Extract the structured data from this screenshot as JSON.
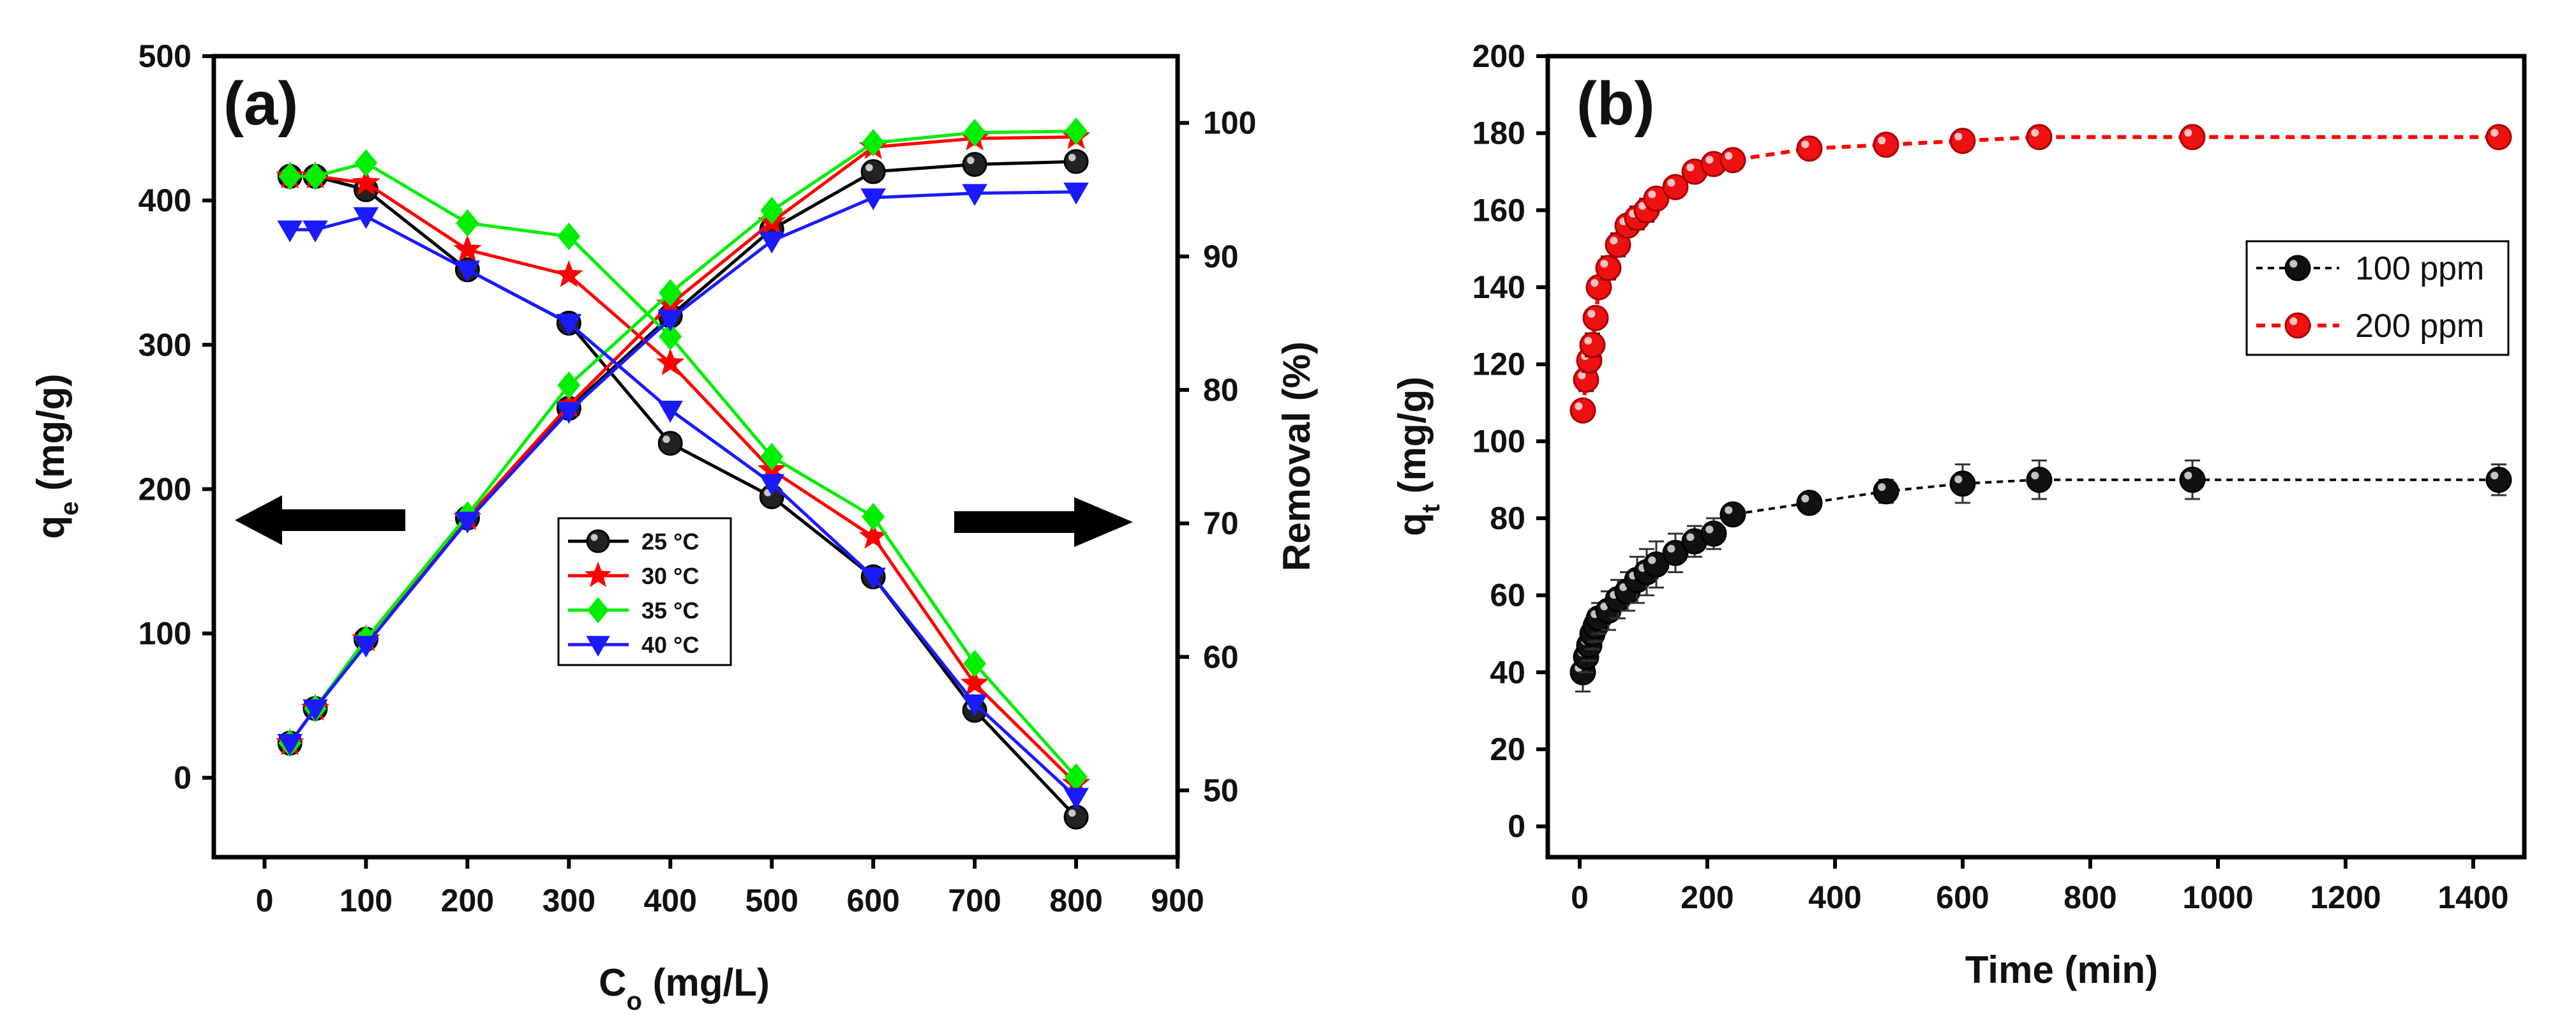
{
  "chart_data": [
    {
      "panel_label": "(a)",
      "type": "line",
      "xlabel_main": "C",
      "xlabel_sub": "o",
      "xlabel_rest": " (mg/L)",
      "ylabel_main": "q",
      "ylabel_sub": "e",
      "ylabel_rest": " (mg/g)",
      "y2label": "Removal (%)",
      "xlim": [
        -50,
        900
      ],
      "ylim": [
        -55,
        500
      ],
      "y2lim": [
        45,
        105
      ],
      "xticks": [
        0,
        100,
        200,
        300,
        400,
        500,
        600,
        700,
        800,
        900
      ],
      "yticks": [
        0,
        100,
        200,
        300,
        400,
        500
      ],
      "y2ticks": [
        50,
        60,
        70,
        80,
        90,
        100
      ],
      "x": [
        25,
        50,
        100,
        200,
        300,
        400,
        500,
        600,
        700,
        800
      ],
      "series": [
        {
          "name": "25 °C",
          "color": "#000000",
          "marker": "circle",
          "qe": [
            24,
            48,
            96,
            180,
            256,
            320,
            380,
            420,
            425,
            427
          ],
          "removal": [
            96,
            96,
            95,
            89,
            85,
            76,
            72,
            66,
            56,
            48
          ]
        },
        {
          "name": "30 °C",
          "color": "#ff0000",
          "marker": "star",
          "qe": [
            24,
            48,
            96,
            180,
            258,
            328,
            385,
            437,
            443,
            444
          ],
          "removal": [
            96,
            96,
            95.5,
            90.5,
            88.6,
            82,
            74,
            69,
            58,
            50.5
          ]
        },
        {
          "name": "35 °C",
          "color": "#00ee00",
          "marker": "diamond",
          "qe": [
            24,
            48,
            96,
            182,
            272,
            336,
            393,
            440,
            447,
            448
          ],
          "removal": [
            96,
            96,
            97,
            92.5,
            91.5,
            84,
            75,
            70.5,
            59.5,
            51
          ]
        },
        {
          "name": "40 °C",
          "color": "#1a1aff",
          "marker": "triangle-down",
          "qe": [
            24,
            48,
            92,
            178,
            254,
            318,
            372,
            402,
            405,
            406
          ],
          "removal": [
            92,
            92,
            93,
            89,
            85,
            78.5,
            73,
            66,
            56.5,
            49.5
          ]
        }
      ],
      "annotations": [
        "left-arrow: q_e axis",
        "right-arrow: Removal axis"
      ]
    },
    {
      "panel_label": "(b)",
      "type": "line",
      "xlabel": "Time (min)",
      "ylabel_main": "q",
      "ylabel_sub": "t",
      "ylabel_rest": " (mg/g)",
      "xlim": [
        -50,
        1480
      ],
      "ylim": [
        -8,
        200
      ],
      "xticks": [
        0,
        200,
        400,
        600,
        800,
        1000,
        1200,
        1400
      ],
      "yticks": [
        0,
        20,
        40,
        60,
        80,
        100,
        120,
        140,
        160,
        180,
        200
      ],
      "series": [
        {
          "name": "100 ppm",
          "color": "#000000",
          "fill": "#111111",
          "marker": "circle",
          "x": [
            5,
            10,
            15,
            20,
            25,
            30,
            45,
            60,
            75,
            90,
            105,
            120,
            150,
            180,
            210,
            240,
            360,
            480,
            600,
            720,
            960,
            1440
          ],
          "y": [
            40,
            44,
            47,
            50,
            52,
            54,
            56,
            59,
            61,
            64,
            66,
            68,
            71,
            74,
            76,
            81,
            84,
            87,
            89,
            90,
            90,
            90
          ],
          "err": [
            5,
            4,
            4,
            4,
            4,
            4,
            5,
            5,
            5,
            6,
            6,
            6,
            5,
            4,
            4,
            2,
            2,
            3,
            5,
            5,
            5,
            4
          ]
        },
        {
          "name": "200 ppm",
          "color": "#ff0000",
          "fill": "#ee1111",
          "marker": "circle",
          "x": [
            5,
            10,
            15,
            20,
            25,
            30,
            45,
            60,
            75,
            90,
            105,
            120,
            150,
            180,
            210,
            240,
            360,
            480,
            600,
            720,
            960,
            1440
          ],
          "y": [
            108,
            116,
            121,
            125,
            132,
            140,
            145,
            151,
            156,
            158,
            160,
            163,
            166,
            170,
            172,
            173,
            176,
            177,
            178,
            179,
            179,
            179
          ],
          "err": [
            2,
            3,
            3,
            3,
            2,
            2,
            3,
            3,
            2,
            3,
            3,
            2,
            2,
            2,
            2,
            2,
            2,
            2,
            2,
            2,
            2,
            2
          ]
        }
      ]
    }
  ]
}
